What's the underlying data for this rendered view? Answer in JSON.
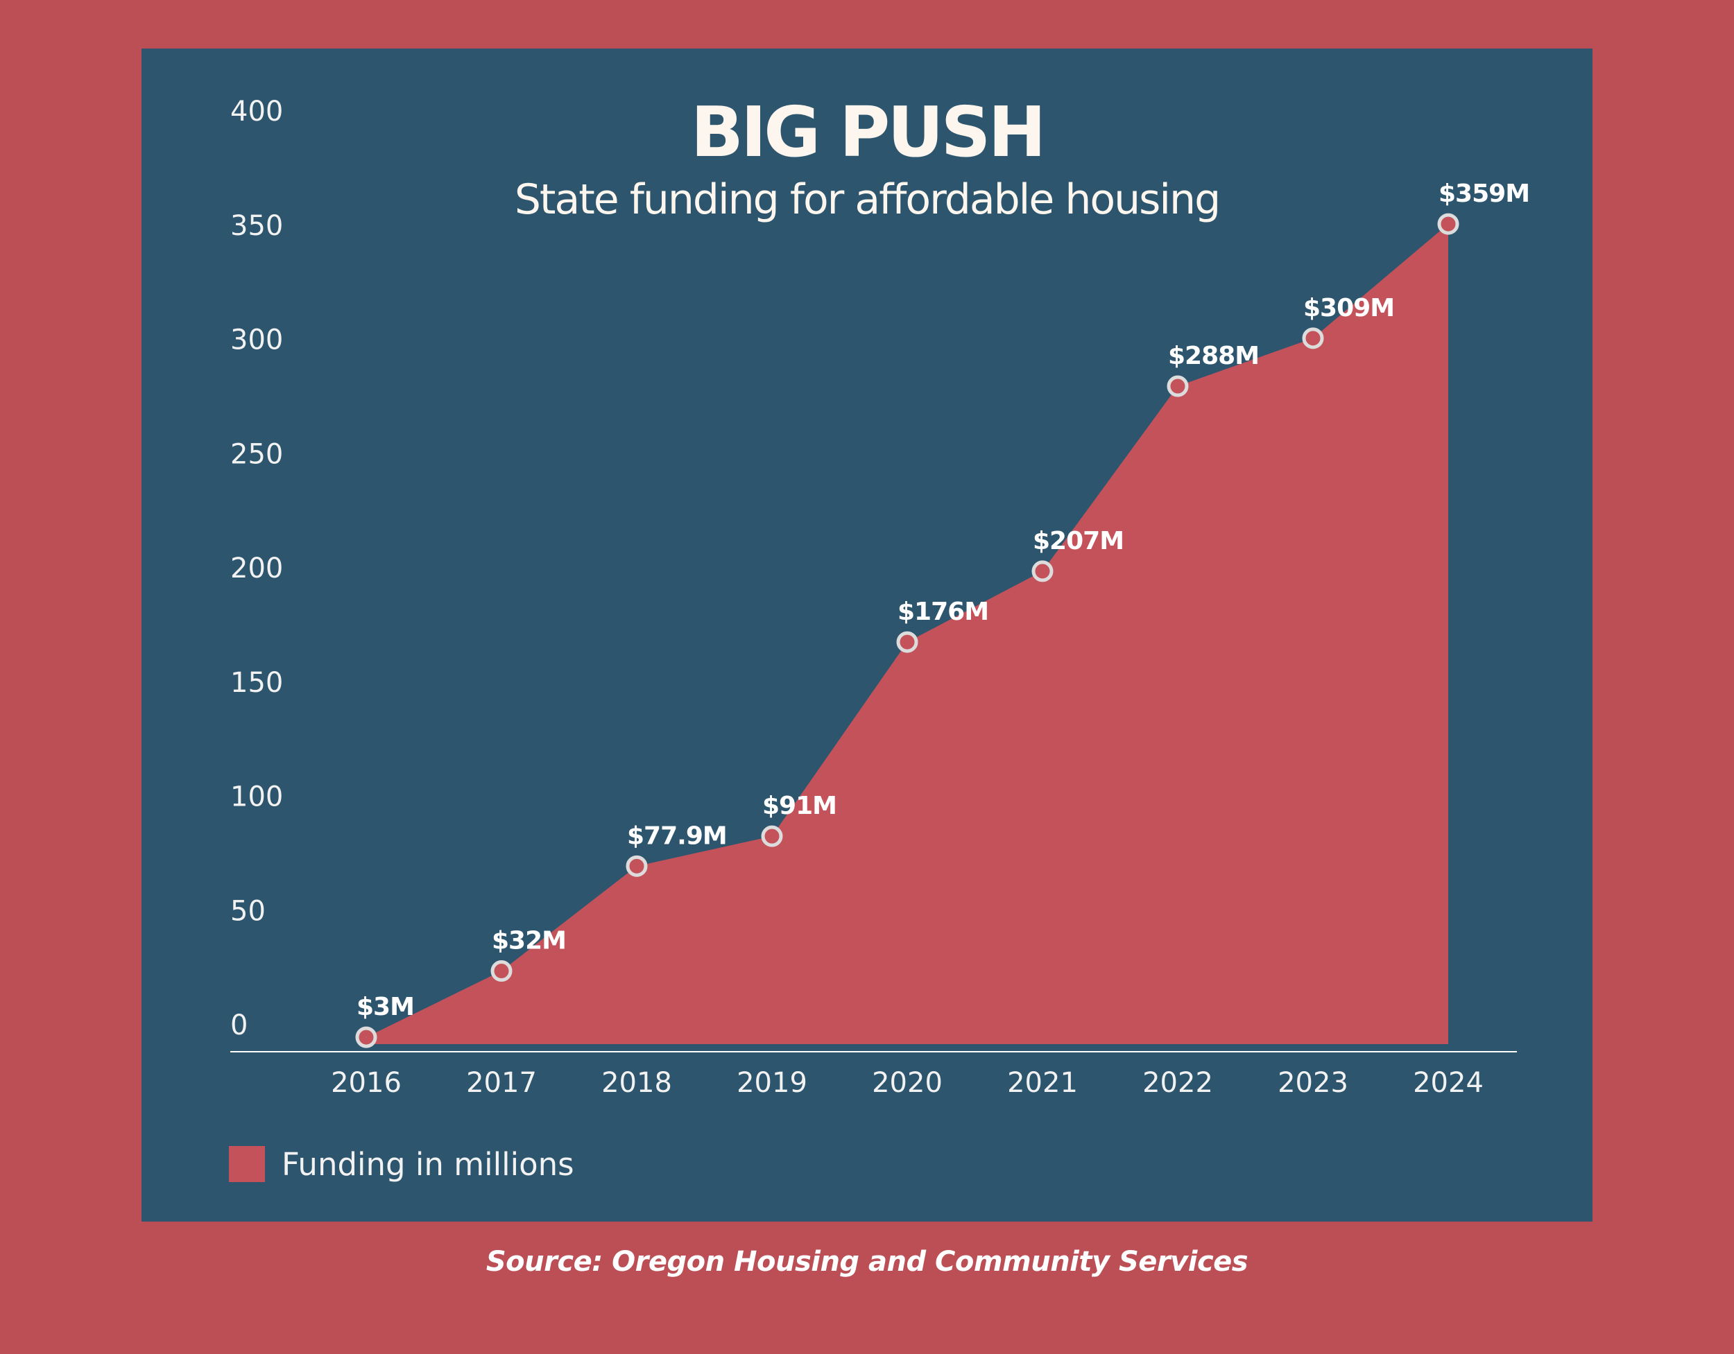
{
  "colors": {
    "background": "#bb4f55",
    "panel": "#2d566e",
    "area": "#c4525a",
    "marker_stroke": "#dcdcdc",
    "text": "#fcf6ee"
  },
  "chart_data": {
    "type": "area",
    "title": "BIG PUSH",
    "subtitle": "State funding for affordable housing",
    "x": [
      "2016",
      "2017",
      "2018",
      "2019",
      "2020",
      "2021",
      "2022",
      "2023",
      "2024"
    ],
    "values": [
      3,
      32,
      77.9,
      91,
      176,
      207,
      288,
      309,
      359
    ],
    "data_labels": [
      "$3M",
      "$32M",
      "$77.9M",
      "$91M",
      "$176M",
      "$207M",
      "$288M",
      "$309M",
      "$359M"
    ],
    "yticks": [
      0,
      50,
      100,
      150,
      200,
      250,
      300,
      350,
      400
    ],
    "ylim": [
      0,
      400
    ],
    "xlabel": "",
    "ylabel": "",
    "grid": false,
    "legend": {
      "label": "Funding in millions",
      "position": "bottom-left"
    }
  },
  "source": "Source: Oregon Housing and Community Services"
}
